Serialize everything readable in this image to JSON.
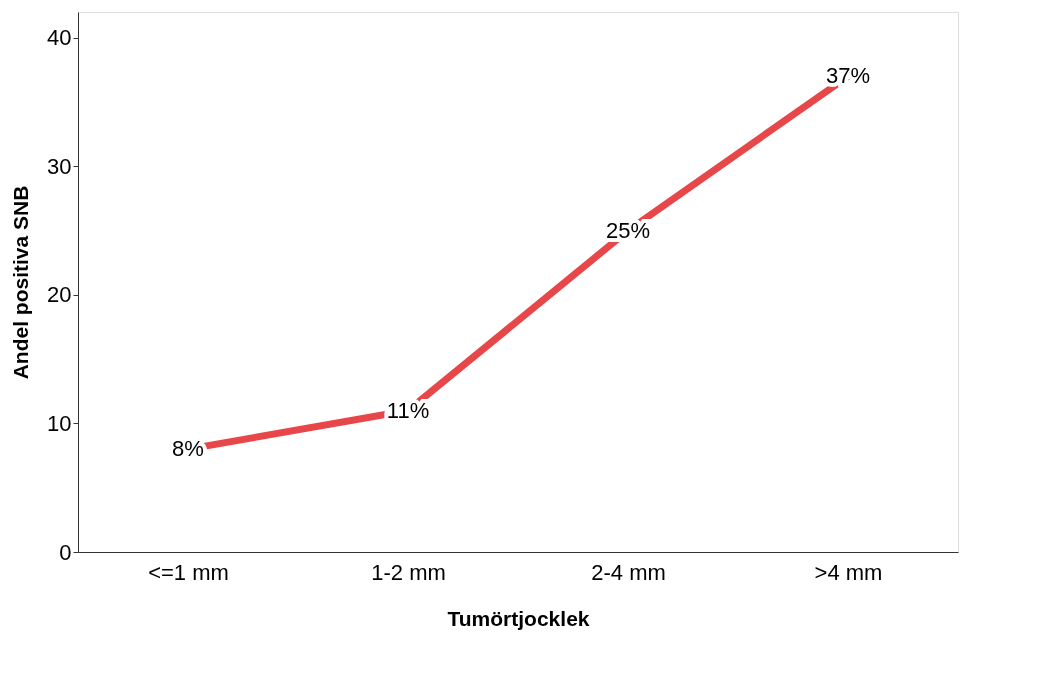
{
  "chart_data": {
    "type": "line",
    "xlabel": "Tumörtjocklek",
    "ylabel": "Andel positiva SNB",
    "categories": [
      "<=1 mm",
      "1-2 mm",
      "2-4 mm",
      ">4 mm"
    ],
    "series": [
      {
        "color": "#e8474a",
        "values": [
          8,
          11,
          25,
          37
        ],
        "value_labels": [
          "8%",
          "11%",
          "25%",
          "37%"
        ]
      }
    ],
    "ylim": [
      0,
      42
    ],
    "yticks": [
      0,
      10,
      20,
      30,
      40
    ],
    "grid": false,
    "marker": "none",
    "line_style": "solid"
  }
}
